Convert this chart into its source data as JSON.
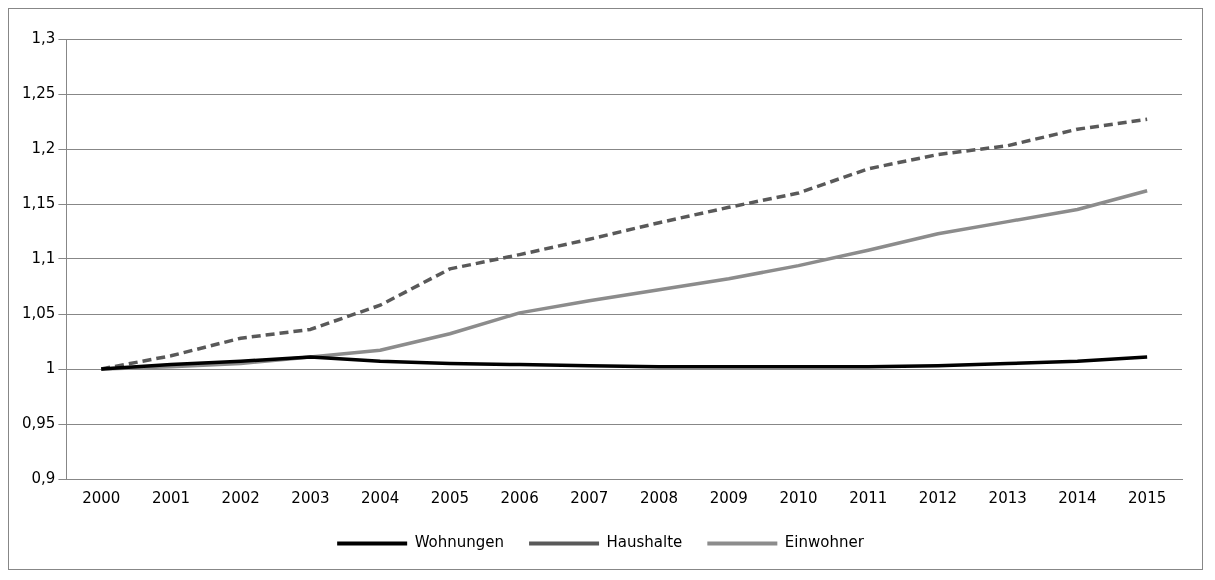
{
  "chart_data": {
    "type": "line",
    "categories": [
      "2000",
      "2001",
      "2002",
      "2003",
      "2004",
      "2005",
      "2006",
      "2007",
      "2008",
      "2009",
      "2010",
      "2011",
      "2012",
      "2013",
      "2014",
      "2015"
    ],
    "series": [
      {
        "name": "Wohnungen",
        "color": "#000000",
        "line_style": "solid",
        "values": [
          1.0,
          1.004,
          1.007,
          1.011,
          1.007,
          1.005,
          1.004,
          1.003,
          1.002,
          1.002,
          1.002,
          1.002,
          1.003,
          1.005,
          1.007,
          1.011
        ]
      },
      {
        "name": "Haushalte",
        "color": "#595959",
        "line_style": "dashed",
        "values": [
          1.0,
          1.012,
          1.028,
          1.036,
          1.058,
          1.091,
          1.104,
          1.118,
          1.133,
          1.147,
          1.16,
          1.182,
          1.195,
          1.203,
          1.218,
          1.227
        ]
      },
      {
        "name": "Einwohner",
        "color": "#8c8c8c",
        "line_style": "solid",
        "values": [
          1.0,
          1.002,
          1.005,
          1.011,
          1.017,
          1.032,
          1.051,
          1.062,
          1.072,
          1.082,
          1.094,
          1.108,
          1.123,
          1.134,
          1.145,
          1.162
        ]
      }
    ],
    "ylim": [
      0.9,
      1.3
    ],
    "yticks": [
      {
        "value": 0.9,
        "label": "0,9"
      },
      {
        "value": 0.95,
        "label": "0,95"
      },
      {
        "value": 1,
        "label": "1"
      },
      {
        "value": 1.05,
        "label": "1,05"
      },
      {
        "value": 1.1,
        "label": "1,1"
      },
      {
        "value": 1.15,
        "label": "1,15"
      },
      {
        "value": 1.2,
        "label": "1,2"
      },
      {
        "value": 1.25,
        "label": "1,25"
      },
      {
        "value": 1.3,
        "label": "1,3"
      }
    ],
    "grid": "y",
    "legend": "bottom",
    "marker": "none"
  }
}
